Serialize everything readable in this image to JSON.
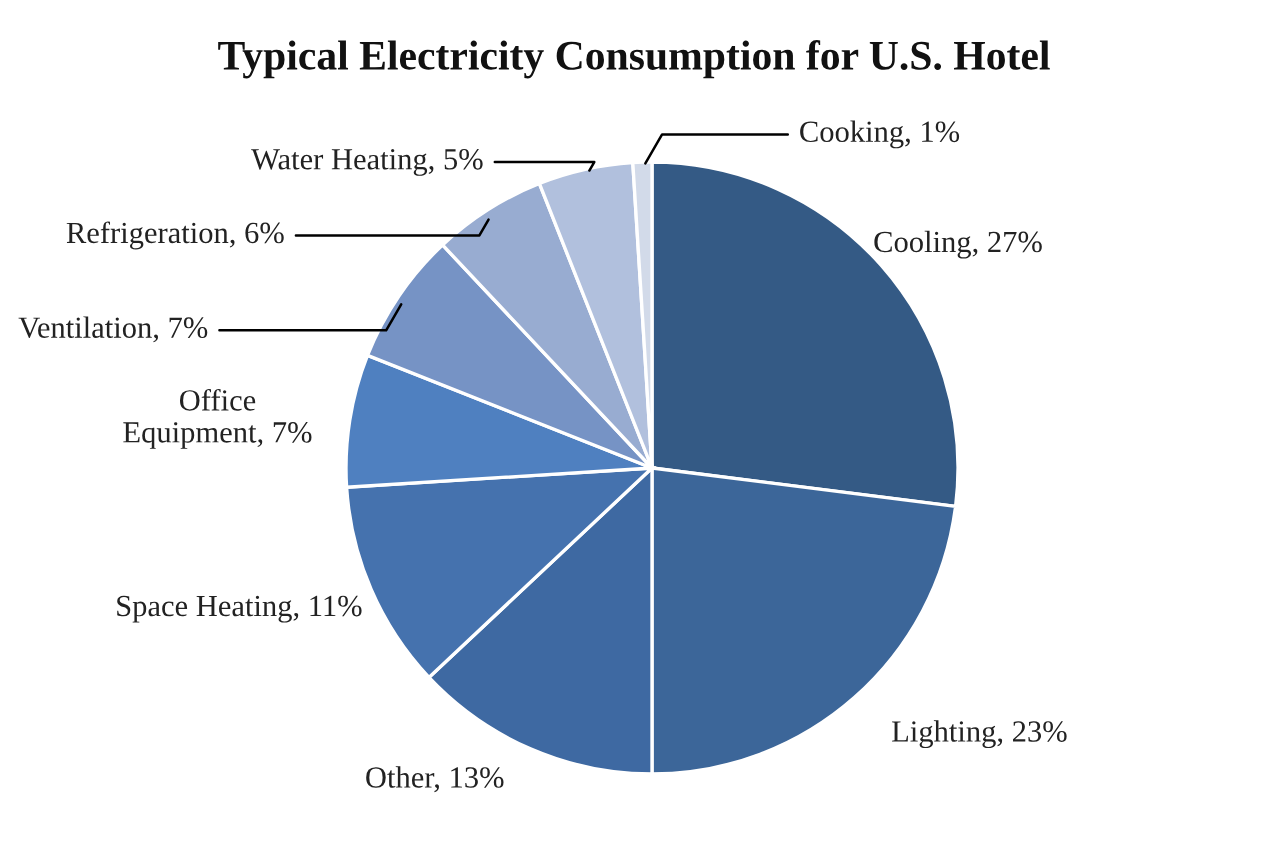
{
  "chart_data": {
    "type": "pie",
    "title": "Typical Electricity Consumption for U.S. Hotel",
    "categories": [
      "Cooling",
      "Lighting",
      "Other",
      "Space Heating",
      "Office Equipment",
      "Ventilation",
      "Refrigeration",
      "Water Heating",
      "Cooking"
    ],
    "values": [
      27,
      23,
      13,
      11,
      7,
      7,
      6,
      5,
      1
    ],
    "value_labels": [
      "27%",
      "23%",
      "13%",
      "11%",
      "7%",
      "7%",
      "6%",
      "5%",
      "1%"
    ],
    "colors": [
      "#345a85",
      "#3c6699",
      "#3e69a2",
      "#4572ae",
      "#4f80c0",
      "#7693c5",
      "#98acd1",
      "#b1c0dd",
      "#d2dae9"
    ]
  }
}
